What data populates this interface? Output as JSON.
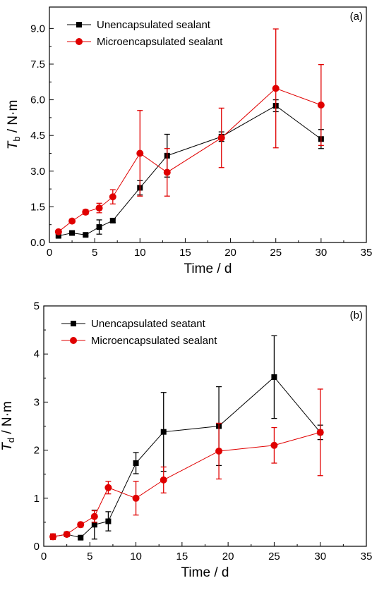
{
  "chart_data": [
    {
      "type": "line",
      "panel_label": "(a)",
      "xlabel": "Time / d",
      "ylabel_main": "T",
      "ylabel_sub": "b",
      "ylabel_unit": " / N·m",
      "xlim": [
        0,
        35
      ],
      "ylim": [
        0,
        9.9
      ],
      "xticks": [
        0,
        5,
        10,
        15,
        20,
        25,
        30,
        35
      ],
      "yticks": [
        0.0,
        1.5,
        3.0,
        4.5,
        6.0,
        7.5,
        9.0
      ],
      "ytick_labels": [
        "0.0",
        "1.5",
        "3.0",
        "4.5",
        "6.0",
        "7.5",
        "9.0"
      ],
      "legend_position": "top-left",
      "series": [
        {
          "name": "Unencapsulated sealant",
          "color": "#000000",
          "marker": "square",
          "x": [
            1,
            2.5,
            4,
            5.5,
            7,
            10,
            13,
            19,
            25,
            30
          ],
          "y": [
            0.28,
            0.4,
            0.32,
            0.65,
            0.92,
            2.3,
            3.65,
            4.45,
            5.75,
            4.35
          ],
          "err": [
            0.05,
            0.05,
            0.05,
            0.3,
            0.08,
            0.3,
            0.9,
            0.2,
            0.25,
            0.4
          ]
        },
        {
          "name": "Microencapsulated sealant",
          "color": "#e00000",
          "marker": "circle",
          "x": [
            1,
            2.5,
            4,
            5.5,
            7,
            10,
            13,
            19,
            25,
            30
          ],
          "y": [
            0.45,
            0.9,
            1.28,
            1.45,
            1.92,
            3.75,
            2.95,
            4.4,
            6.48,
            5.78
          ],
          "err": [
            0.05,
            0.08,
            0.1,
            0.2,
            0.3,
            1.8,
            1.0,
            1.25,
            2.5,
            1.7
          ]
        }
      ]
    },
    {
      "type": "line",
      "panel_label": "(b)",
      "xlabel": "Time / d",
      "ylabel_main": "T",
      "ylabel_sub": "d",
      "ylabel_unit": " / N·m",
      "xlim": [
        0,
        35
      ],
      "ylim": [
        0,
        5
      ],
      "xticks": [
        0,
        5,
        10,
        15,
        20,
        25,
        30,
        35
      ],
      "yticks": [
        0,
        1,
        2,
        3,
        4,
        5
      ],
      "ytick_labels": [
        "0",
        "1",
        "2",
        "3",
        "4",
        "5"
      ],
      "legend_position": "top-left",
      "series": [
        {
          "name": "Unencapsulated seatant",
          "color": "#000000",
          "marker": "square",
          "x": [
            1,
            2.5,
            4,
            5.5,
            7,
            10,
            13,
            19,
            25,
            30
          ],
          "y": [
            0.2,
            0.25,
            0.18,
            0.45,
            0.52,
            1.73,
            2.38,
            2.5,
            3.52,
            2.37
          ],
          "err": [
            0.03,
            0.03,
            0.03,
            0.3,
            0.2,
            0.22,
            0.82,
            0.82,
            0.86,
            0.15
          ]
        },
        {
          "name": "Microencapsulated sealant",
          "color": "#e00000",
          "marker": "circle",
          "x": [
            1,
            2.5,
            4,
            5.5,
            7,
            10,
            13,
            19,
            25,
            30
          ],
          "y": [
            0.2,
            0.25,
            0.45,
            0.62,
            1.22,
            1.0,
            1.38,
            1.98,
            2.1,
            2.37
          ],
          "err": [
            0.06,
            0.04,
            0.05,
            0.12,
            0.13,
            0.35,
            0.27,
            0.58,
            0.37,
            0.9
          ]
        }
      ]
    }
  ]
}
